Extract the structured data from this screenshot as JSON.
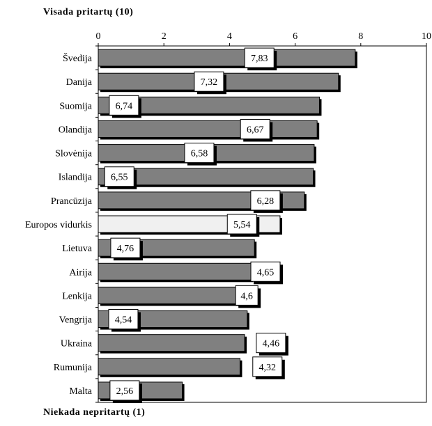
{
  "top_label": "Visada pritartų (10)",
  "bottom_label": "Niekada nepritartų (1)",
  "colors": {
    "bar": "#808080",
    "highlight_bar": "#f0f0f0",
    "outline": "#000000",
    "label_box": "#ffffff"
  },
  "chart_data": {
    "type": "bar",
    "orientation": "horizontal",
    "title": "",
    "xlabel": "",
    "ylabel": "",
    "xlim": [
      0,
      10
    ],
    "x_ticks": [
      0,
      2,
      4,
      6,
      8,
      10
    ],
    "x_tick_labels": [
      "0",
      "2",
      "4",
      "6",
      "8",
      "10"
    ],
    "grid": false,
    "legend": "none",
    "categories": [
      "Švedija",
      "Danija",
      "Suomija",
      "Olandija",
      "Slovėnija",
      "Islandija",
      "Prancūzija",
      "Europos vidurkis",
      "Lietuva",
      "Airija",
      "Lenkija",
      "Vengrija",
      "Ukraina",
      "Rumunija",
      "Malta"
    ],
    "values": [
      7.83,
      7.32,
      6.74,
      6.67,
      6.58,
      6.55,
      6.28,
      5.54,
      4.76,
      4.65,
      4.6,
      4.54,
      4.46,
      4.32,
      2.56
    ],
    "value_labels": [
      "7,83",
      "7,32",
      "6,74",
      "6,67",
      "6,58",
      "6,55",
      "6,28",
      "5,54",
      "4,76",
      "4,65",
      "4,6",
      "4,54",
      "4,46",
      "4,32",
      "2,56"
    ],
    "highlighted_category": "Europos vidurkis"
  }
}
